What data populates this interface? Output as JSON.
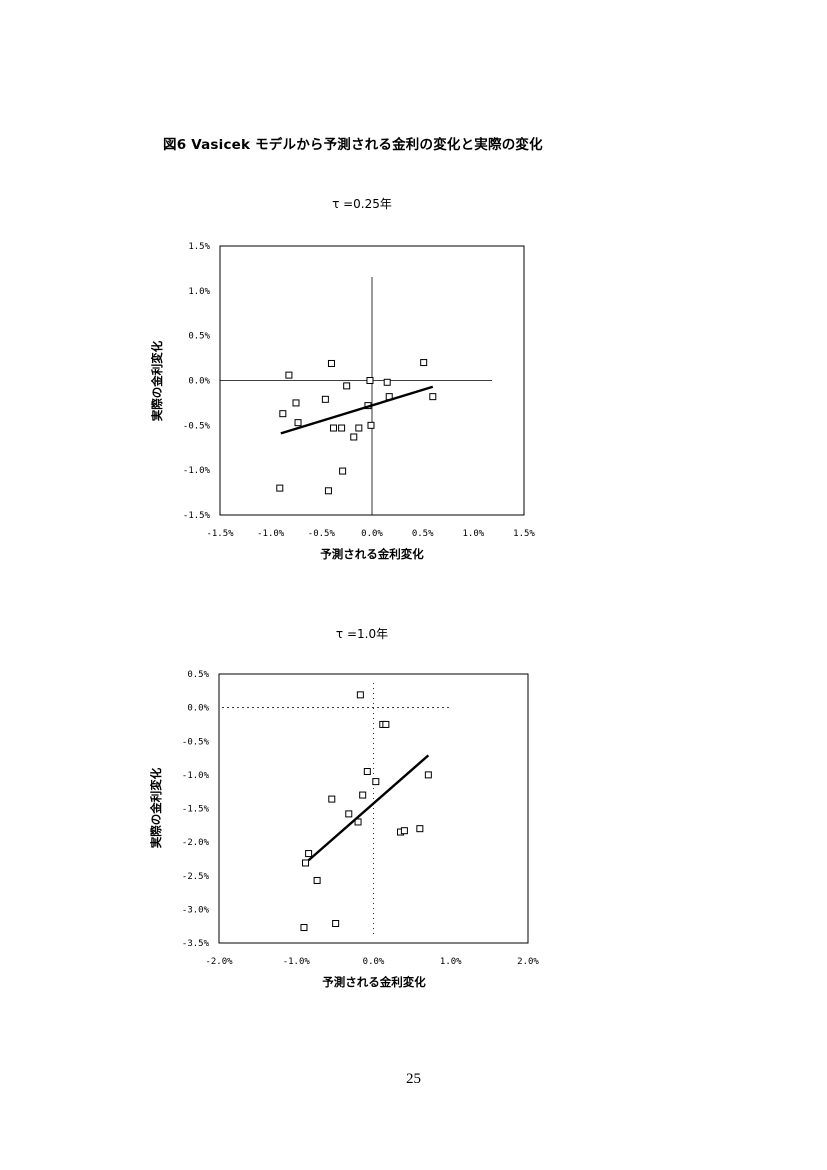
{
  "figure_title": "図6 Vasicek モデルから予測される金利の変化と実際の変化",
  "page_number": "25",
  "chart_data": [
    {
      "type": "scatter",
      "title": "τ =0.25年",
      "xlabel": "予測される金利変化",
      "ylabel": "実際の金利変化",
      "xlim": [
        -1.5,
        1.5
      ],
      "ylim": [
        -1.5,
        1.5
      ],
      "x_ticks": [
        "-1.5%",
        "-1.0%",
        "-0.5%",
        "0.0%",
        "0.5%",
        "1.0%",
        "1.5%"
      ],
      "y_ticks": [
        "1.5%",
        "1.0%",
        "0.5%",
        "0.0%",
        "-0.5%",
        "-1.0%",
        "-1.5%"
      ],
      "grid": false,
      "points": [
        {
          "x": -0.82,
          "y": 0.06
        },
        {
          "x": -0.4,
          "y": 0.19
        },
        {
          "x": 0.51,
          "y": 0.2
        },
        {
          "x": -0.25,
          "y": -0.06
        },
        {
          "x": -0.02,
          "y": 0.0
        },
        {
          "x": 0.15,
          "y": -0.02
        },
        {
          "x": -0.75,
          "y": -0.25
        },
        {
          "x": -0.46,
          "y": -0.21
        },
        {
          "x": 0.17,
          "y": -0.18
        },
        {
          "x": 0.6,
          "y": -0.18
        },
        {
          "x": -0.88,
          "y": -0.37
        },
        {
          "x": -0.73,
          "y": -0.47
        },
        {
          "x": -0.04,
          "y": -0.28
        },
        {
          "x": -0.38,
          "y": -0.53
        },
        {
          "x": -0.3,
          "y": -0.53
        },
        {
          "x": -0.13,
          "y": -0.53
        },
        {
          "x": -0.18,
          "y": -0.63
        },
        {
          "x": -0.01,
          "y": -0.5
        },
        {
          "x": -0.29,
          "y": -1.01
        },
        {
          "x": -0.91,
          "y": -1.2
        },
        {
          "x": -0.43,
          "y": -1.23
        }
      ],
      "trendline": [
        {
          "x": -0.9,
          "y": -0.59
        },
        {
          "x": 0.6,
          "y": -0.07
        }
      ]
    },
    {
      "type": "scatter",
      "title": "τ =1.0年",
      "xlabel": "予測される金利変化",
      "ylabel": "実際の金利変化",
      "xlim": [
        -2.0,
        2.0
      ],
      "ylim": [
        -3.5,
        0.5
      ],
      "x_ticks": [
        "-2.0%",
        "-1.0%",
        "0.0%",
        "1.0%",
        "2.0%"
      ],
      "y_ticks": [
        "0.5%",
        "0.0%",
        "-0.5%",
        "-1.0%",
        "-1.5%",
        "-2.0%",
        "-2.5%",
        "-3.0%",
        "-3.5%"
      ],
      "grid": false,
      "points": [
        {
          "x": -0.17,
          "y": 0.19
        },
        {
          "x": 0.12,
          "y": -0.25
        },
        {
          "x": 0.16,
          "y": -0.25
        },
        {
          "x": -0.08,
          "y": -0.95
        },
        {
          "x": 0.03,
          "y": -1.1
        },
        {
          "x": 0.71,
          "y": -1.0
        },
        {
          "x": -0.54,
          "y": -1.36
        },
        {
          "x": -0.14,
          "y": -1.3
        },
        {
          "x": -0.32,
          "y": -1.58
        },
        {
          "x": -0.2,
          "y": -1.7
        },
        {
          "x": 0.35,
          "y": -1.85
        },
        {
          "x": 0.4,
          "y": -1.83
        },
        {
          "x": 0.6,
          "y": -1.8
        },
        {
          "x": -0.84,
          "y": -2.17
        },
        {
          "x": -0.88,
          "y": -2.31
        },
        {
          "x": -0.73,
          "y": -2.57
        },
        {
          "x": -0.49,
          "y": -3.21
        },
        {
          "x": -0.9,
          "y": -3.27
        }
      ],
      "trendline": [
        {
          "x": -0.84,
          "y": -2.27
        },
        {
          "x": 0.71,
          "y": -0.71
        }
      ]
    }
  ]
}
